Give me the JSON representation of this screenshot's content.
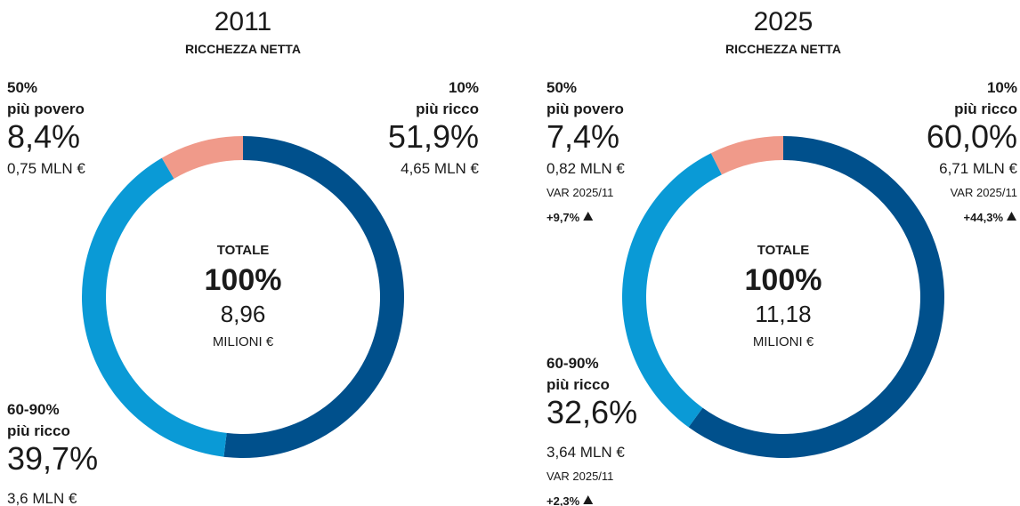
{
  "chart_data": [
    {
      "type": "pie",
      "title": "2011",
      "subtitle": "RICCHEZZA NETTA",
      "center": {
        "label": "TOTALE",
        "total": "100%",
        "amount": "8,96",
        "unit": "MILIONI €"
      },
      "slices": [
        {
          "group": "10%",
          "name": "più ricco",
          "value": 51.9,
          "value_label": "51,9%",
          "color": "#00508c",
          "amount": "4,65 MLN €"
        },
        {
          "group": "60-90%",
          "name": "più ricco",
          "value": 39.7,
          "value_label": "39,7%",
          "color": "#0a9ad6",
          "amount": "3,6 MLN €"
        },
        {
          "group": "50%",
          "name": "più povero",
          "value": 8.4,
          "value_label": "8,4%",
          "color": "#f09a8a",
          "amount": "0,75 MLN €"
        }
      ]
    },
    {
      "type": "pie",
      "title": "2025",
      "subtitle": "RICCHEZZA NETTA",
      "center": {
        "label": "TOTALE",
        "total": "100%",
        "amount": "11,18",
        "unit": "MILIONI €"
      },
      "slices": [
        {
          "group": "10%",
          "name": "più ricco",
          "value": 60.0,
          "value_label": "60,0%",
          "color": "#00508c",
          "amount": "6,71 MLN €",
          "change_label": "VAR 2025/11",
          "change": "+44,3%"
        },
        {
          "group": "60-90%",
          "name": "più ricco",
          "value": 32.6,
          "value_label": "32,6%",
          "color": "#0a9ad6",
          "amount": "3,64 MLN €",
          "change_label": "VAR 2025/11",
          "change": "+2,3%"
        },
        {
          "group": "50%",
          "name": "più povero",
          "value": 7.4,
          "value_label": "7,4%",
          "color": "#f09a8a",
          "amount": "0,82 MLN €",
          "change_label": "VAR 2025/11",
          "change": "+9,7%"
        }
      ]
    }
  ]
}
